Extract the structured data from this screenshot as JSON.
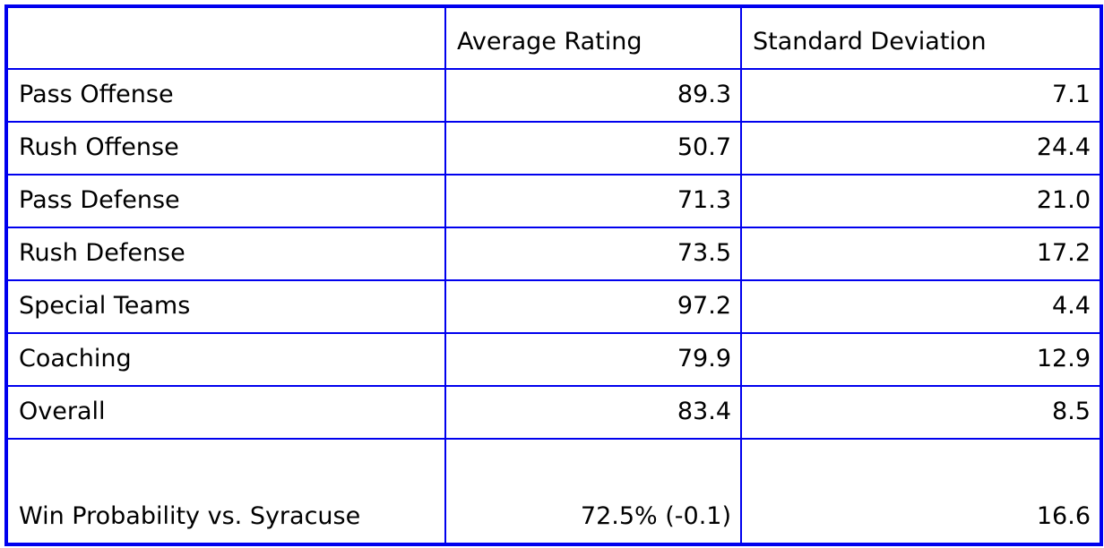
{
  "colors": {
    "border": "#0000ee",
    "text": "#000000",
    "background": "#ffffff"
  },
  "chart_data": {
    "type": "table",
    "title": "",
    "columns": [
      "",
      "Average Rating",
      "Standard Deviation"
    ],
    "rows": [
      {
        "label": "Pass Offense",
        "average_rating": "89.3",
        "standard_deviation": "7.1"
      },
      {
        "label": "Rush Offense",
        "average_rating": "50.7",
        "standard_deviation": "24.4"
      },
      {
        "label": "Pass Defense",
        "average_rating": "71.3",
        "standard_deviation": "21.0"
      },
      {
        "label": "Rush Defense",
        "average_rating": "73.5",
        "standard_deviation": "17.2"
      },
      {
        "label": "Special Teams",
        "average_rating": "97.2",
        "standard_deviation": "4.4"
      },
      {
        "label": "Coaching",
        "average_rating": "79.9",
        "standard_deviation": "12.9"
      },
      {
        "label": "Overall",
        "average_rating": "83.4",
        "standard_deviation": "8.5"
      },
      {
        "label": "Win Probability vs. Syracuse",
        "average_rating": "72.5% (-0.1)",
        "standard_deviation": "16.6"
      }
    ]
  }
}
